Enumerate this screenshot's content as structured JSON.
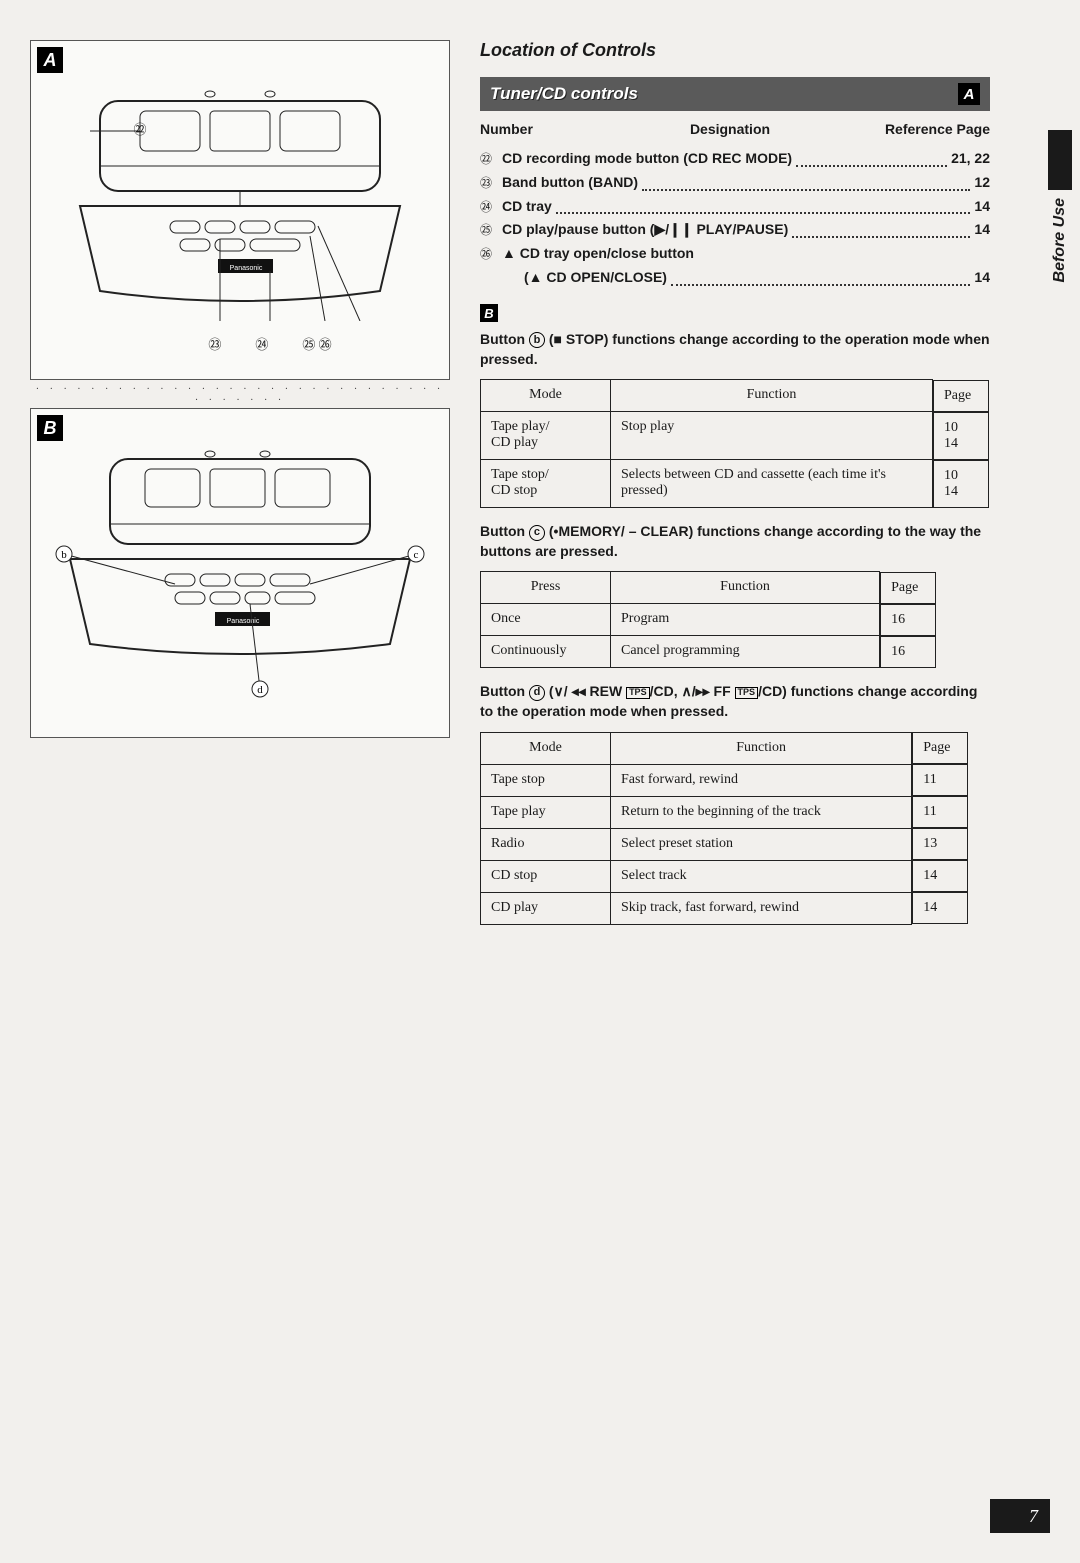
{
  "section_title": "Location of Controls",
  "banner": {
    "text": "Tuner/CD controls",
    "badge": "A"
  },
  "col_headers": {
    "c1": "Number",
    "c2": "Designation",
    "c3": "Reference Page"
  },
  "controls": [
    {
      "num": "㉒",
      "label": "CD recording mode button (CD REC MODE)",
      "page": "21, 22"
    },
    {
      "num": "㉓",
      "label": "Band button (BAND)",
      "page": "12"
    },
    {
      "num": "㉔",
      "label": "CD tray",
      "page": "14"
    },
    {
      "num": "㉕",
      "label": "CD play/pause button (▶/❙❙ PLAY/PAUSE)",
      "page": "14"
    },
    {
      "num": "㉖",
      "label": "▲ CD tray open/close button",
      "page": ""
    },
    {
      "num": "",
      "label": "(▲ CD OPEN/CLOSE)",
      "page": "14",
      "indent": true
    }
  ],
  "sectionB_badge": "B",
  "para_b": {
    "prefix": "Button ",
    "letter": "ⓑ",
    "rest": " (■ STOP) functions change according to the operation mode when pressed."
  },
  "table1": {
    "headers": [
      "Mode",
      "Function",
      "Page"
    ],
    "rows": [
      {
        "c1": "Tape play/\nCD play",
        "c2": "Stop play",
        "c3": "10\n14"
      },
      {
        "c1": "Tape stop/\nCD stop",
        "c2": "Selects between CD and cassette (each time it's pressed)",
        "c3": "10\n14"
      }
    ]
  },
  "para_c": {
    "prefix": "Button ",
    "letter": "ⓒ",
    "rest": " (•MEMORY/ – CLEAR) functions change according to the way the buttons are pressed."
  },
  "table2": {
    "headers": [
      "Press",
      "Function",
      "Page"
    ],
    "rows": [
      {
        "c1": "Once",
        "c2": "Program",
        "c3": "16"
      },
      {
        "c1": "Continuously",
        "c2": "Cancel programming",
        "c3": "16"
      }
    ]
  },
  "para_d": {
    "prefix": "Button ",
    "letter": "ⓓ",
    "rest_html": " (∨/ ◂◂ REW <span class='tps-box'>TPS</span>/CD,  ∧/▸▸ FF <span class='tps-box'>TPS</span>/CD) functions change according to the operation mode when pressed."
  },
  "table3": {
    "headers": [
      "Mode",
      "Function",
      "Page"
    ],
    "rows": [
      {
        "c1": "Tape stop",
        "c2": "Fast forward, rewind",
        "c3": "11"
      },
      {
        "c1": "Tape play",
        "c2": "Return to the beginning of the track",
        "c3": "11"
      },
      {
        "c1": "Radio",
        "c2": "Select preset station",
        "c3": "13"
      },
      {
        "c1": "CD stop",
        "c2": "Select track",
        "c3": "14"
      },
      {
        "c1": "CD play",
        "c2": "Skip track, fast forward, rewind",
        "c3": "14"
      }
    ]
  },
  "diagramA": {
    "label": "A",
    "callouts": [
      "㉒",
      "㉓",
      "㉔",
      "㉕ ㉖"
    ]
  },
  "diagramB": {
    "label": "B",
    "callouts_side": [
      "ⓑ",
      "ⓒ"
    ],
    "callout_bottom": "ⓓ"
  },
  "side_tab": "Before Use",
  "page_number": "7",
  "brand": "Panasonic"
}
